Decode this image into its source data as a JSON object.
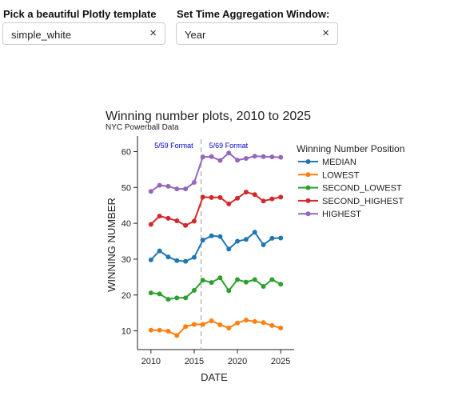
{
  "controls": {
    "template_label": "Pick a beautiful Plotly template",
    "template_value": "simple_white",
    "window_label": "Set Time Aggregation Window:",
    "window_value": "Year",
    "clear_icon": "×"
  },
  "chart_data": {
    "type": "line",
    "title": "Winning number plots, 2010 to 2025",
    "subtitle": "NYC Powerball Data",
    "xlabel": "DATE",
    "ylabel": "WINNING NUMBER",
    "xlim": [
      2009,
      2026
    ],
    "ylim": [
      5,
      63
    ],
    "xticks": [
      2010,
      2015,
      2020,
      2025
    ],
    "yticks": [
      10,
      20,
      30,
      40,
      50,
      60
    ],
    "grid": false,
    "legend": {
      "title": "Winning Number Position",
      "placement": "top-right"
    },
    "x": [
      2010,
      2011,
      2012,
      2013,
      2014,
      2015,
      2016,
      2017,
      2018,
      2019,
      2020,
      2021,
      2022,
      2023,
      2024,
      2025
    ],
    "series": [
      {
        "name": "MEDIAN",
        "color": "#1f77b4",
        "values": [
          29.8,
          32.3,
          30.6,
          29.6,
          29.4,
          30.5,
          35.3,
          36.5,
          36.3,
          32.8,
          35.0,
          35.5,
          37.5,
          34.0,
          35.8,
          35.9
        ]
      },
      {
        "name": "LOWEST",
        "color": "#ff7f0e",
        "values": [
          10.2,
          10.2,
          9.9,
          8.7,
          11.2,
          11.8,
          11.8,
          12.8,
          11.7,
          10.8,
          12.2,
          13.0,
          12.6,
          12.3,
          11.5,
          10.8
        ]
      },
      {
        "name": "SECOND_LOWEST",
        "color": "#2ca02c",
        "values": [
          20.6,
          20.3,
          18.8,
          19.2,
          19.2,
          21.3,
          24.1,
          23.5,
          24.8,
          21.2,
          24.3,
          23.6,
          24.3,
          22.4,
          24.3,
          23.0
        ]
      },
      {
        "name": "SECOND_HIGHEST",
        "color": "#d62728",
        "values": [
          39.7,
          42.0,
          41.4,
          40.7,
          39.4,
          40.6,
          47.3,
          47.2,
          47.2,
          45.4,
          47.0,
          48.7,
          48.0,
          46.2,
          46.8,
          47.3
        ]
      },
      {
        "name": "HIGHEST",
        "color": "#9467bd",
        "values": [
          48.9,
          50.6,
          50.3,
          49.6,
          49.6,
          51.4,
          58.5,
          58.6,
          57.5,
          59.6,
          57.6,
          58.1,
          58.7,
          58.6,
          58.5,
          58.4
        ]
      }
    ],
    "annotations": [
      {
        "text": "5/59 Format",
        "color": "#0000cc"
      },
      {
        "text": "5/69 Format",
        "color": "#0000cc"
      }
    ],
    "format_change_x": 2015.8
  }
}
